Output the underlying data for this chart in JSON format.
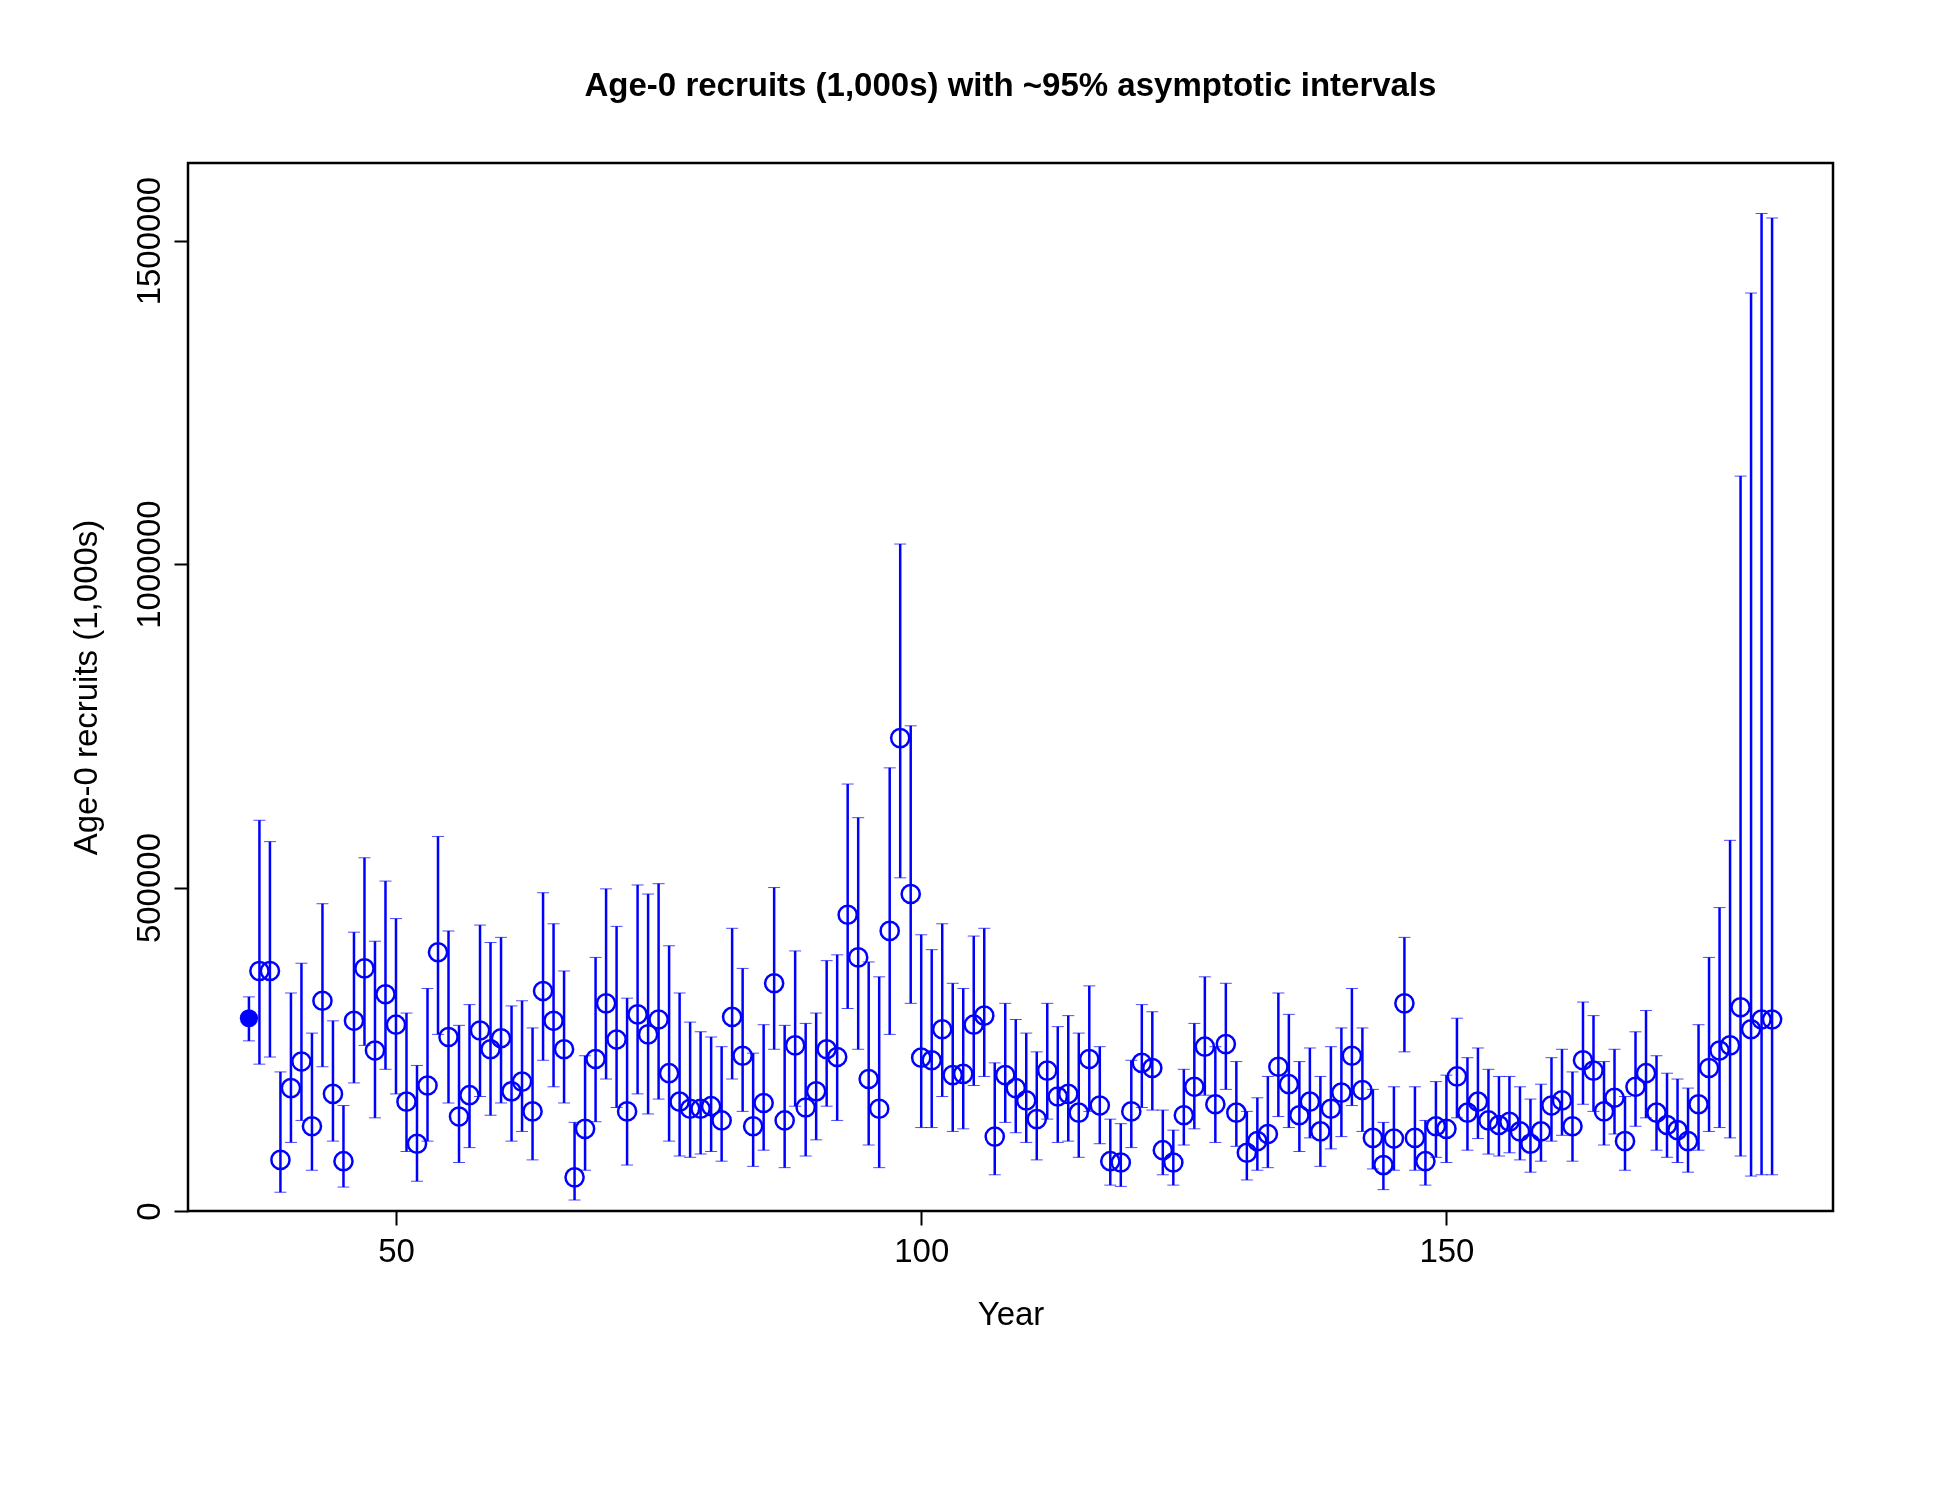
{
  "chart_data": {
    "type": "scatter",
    "title": "Age-0 recruits (1,000s) with ~95% asymptotic intervals",
    "xlabel": "Year",
    "ylabel": "Age-0 recruits (1,000s)",
    "xlim": [
      30.2,
      186.8
    ],
    "ylim": [
      0,
      1620000
    ],
    "xticks": [
      50,
      100,
      150
    ],
    "yticks": [
      0,
      500000,
      1000000,
      1500000
    ],
    "grid": false,
    "marker": "circle",
    "series": [
      {
        "color": "#0000ff",
        "x": [
          36
        ],
        "values": [
          298000
        ],
        "errors": [
          [
            263000,
            331000
          ]
        ]
      },
      {
        "color": "#0000ff",
        "x": [
          37,
          38,
          39,
          40,
          41,
          42,
          43,
          44,
          45,
          46,
          47,
          48,
          49,
          50,
          51,
          52,
          53,
          54,
          55,
          56,
          57,
          58,
          59,
          60,
          61,
          62,
          63,
          64,
          65,
          66,
          67,
          68,
          69,
          70,
          71,
          72,
          73,
          74,
          75,
          76,
          77,
          78,
          79,
          80,
          81,
          82,
          83,
          84,
          85,
          86,
          87,
          88,
          89,
          90,
          91,
          92,
          93,
          94,
          95,
          96,
          97,
          98,
          99,
          100,
          101,
          102,
          103,
          104,
          105,
          106,
          107,
          108,
          109,
          110,
          111,
          112,
          113,
          114,
          115,
          116,
          117,
          118,
          119,
          120,
          121,
          122,
          123,
          124,
          125,
          126,
          127,
          128,
          129,
          130,
          131,
          132,
          133,
          134,
          135,
          136,
          137,
          138,
          139,
          140,
          141,
          142,
          143,
          144,
          145,
          146,
          147,
          148,
          149,
          150,
          151,
          152,
          153,
          154,
          155,
          156,
          157,
          158,
          159,
          160,
          161,
          162,
          163,
          164,
          165,
          166,
          167,
          168,
          169,
          170,
          171,
          172,
          173,
          174,
          175,
          176,
          177,
          178,
          179,
          180,
          181
        ],
        "values": [
          371000,
          371000,
          79000,
          190000,
          231000,
          131000,
          325000,
          181000,
          77000,
          294000,
          375000,
          248000,
          335000,
          288000,
          169000,
          104000,
          194000,
          400000,
          269000,
          146000,
          179000,
          279000,
          250000,
          267000,
          185000,
          200000,
          154000,
          340000,
          294000,
          250000,
          52000,
          127000,
          235000,
          321000,
          265000,
          154000,
          304000,
          273000,
          296000,
          213000,
          169000,
          158000,
          158000,
          162000,
          140000,
          300000,
          240000,
          131000,
          167000,
          352000,
          140000,
          256000,
          160000,
          185000,
          250000,
          238000,
          458000,
          392000,
          204000,
          158000,
          433000,
          731000,
          490000,
          237000,
          233000,
          281000,
          210000,
          212000,
          288000,
          302000,
          115000,
          210000,
          190000,
          171000,
          142000,
          217000,
          177000,
          181000,
          152000,
          235000,
          163000,
          77000,
          75000,
          154000,
          229000,
          221000,
          94000,
          75000,
          148000,
          192000,
          254000,
          165000,
          258000,
          152000,
          90000,
          108000,
          119000,
          223000,
          196000,
          148000,
          169000,
          123000,
          158000,
          183000,
          240000,
          187000,
          113000,
          71000,
          112000,
          321000,
          113000,
          77000,
          131000,
          127000,
          208000,
          152000,
          169000,
          140000,
          133000,
          138000,
          123000,
          104000,
          123000,
          163000,
          171000,
          131000,
          233000,
          217000,
          154000,
          175000,
          108000,
          192000,
          213000,
          152000,
          133000,
          125000,
          108000,
          165000,
          221000,
          248000,
          256000,
          315000,
          281000,
          296000,
          296000
        ],
        "errors": [
          [
            227000,
            604000
          ],
          [
            238000,
            571000
          ],
          [
            29000,
            215000
          ],
          [
            106000,
            337000
          ],
          [
            140000,
            383000
          ],
          [
            63000,
            275000
          ],
          [
            223000,
            475000
          ],
          [
            108000,
            294000
          ],
          [
            37000,
            163000
          ],
          [
            198000,
            431000
          ],
          [
            256000,
            546000
          ],
          [
            144000,
            417000
          ],
          [
            219000,
            510000
          ],
          [
            181000,
            452000
          ],
          [
            92000,
            306000
          ],
          [
            46000,
            225000
          ],
          [
            108000,
            344000
          ],
          [
            273000,
            579000
          ],
          [
            167000,
            433000
          ],
          [
            75000,
            287000
          ],
          [
            98000,
            319000
          ],
          [
            177000,
            442000
          ],
          [
            148000,
            415000
          ],
          [
            167000,
            423000
          ],
          [
            108000,
            317000
          ],
          [
            123000,
            325000
          ],
          [
            79000,
            283000
          ],
          [
            233000,
            492000
          ],
          [
            192000,
            444000
          ],
          [
            167000,
            371000
          ],
          [
            17000,
            137000
          ],
          [
            63000,
            240000
          ],
          [
            138000,
            392000
          ],
          [
            204000,
            498000
          ],
          [
            160000,
            440000
          ],
          [
            71000,
            329000
          ],
          [
            181000,
            504000
          ],
          [
            150000,
            490000
          ],
          [
            173000,
            506000
          ],
          [
            108000,
            410000
          ],
          [
            85000,
            337000
          ],
          [
            83000,
            292000
          ],
          [
            88000,
            277000
          ],
          [
            92000,
            269000
          ],
          [
            77000,
            254000
          ],
          [
            204000,
            437000
          ],
          [
            154000,
            375000
          ],
          [
            69000,
            244000
          ],
          [
            94000,
            288000
          ],
          [
            250000,
            500000
          ],
          [
            67000,
            287000
          ],
          [
            162000,
            402000
          ],
          [
            85000,
            290000
          ],
          [
            110000,
            306000
          ],
          [
            162000,
            387000
          ],
          [
            140000,
            396000
          ],
          [
            313000,
            660000
          ],
          [
            250000,
            608000
          ],
          [
            102000,
            385000
          ],
          [
            67000,
            362000
          ],
          [
            273000,
            685000
          ],
          [
            515000,
            1031000
          ],
          [
            321000,
            750000
          ],
          [
            129000,
            427000
          ],
          [
            129000,
            404000
          ],
          [
            177000,
            444000
          ],
          [
            123000,
            352000
          ],
          [
            127000,
            344000
          ],
          [
            194000,
            425000
          ],
          [
            208000,
            437000
          ],
          [
            56000,
            229000
          ],
          [
            137000,
            321000
          ],
          [
            121000,
            296000
          ],
          [
            106000,
            275000
          ],
          [
            79000,
            246000
          ],
          [
            142000,
            321000
          ],
          [
            106000,
            285000
          ],
          [
            108000,
            302000
          ],
          [
            83000,
            275000
          ],
          [
            154000,
            348000
          ],
          [
            104000,
            254000
          ],
          [
            40000,
            142000
          ],
          [
            38000,
            135000
          ],
          [
            98000,
            233000
          ],
          [
            160000,
            319000
          ],
          [
            156000,
            308000
          ],
          [
            56000,
            156000
          ],
          [
            40000,
            125000
          ],
          [
            102000,
            219000
          ],
          [
            127000,
            290000
          ],
          [
            179000,
            362000
          ],
          [
            106000,
            254000
          ],
          [
            188000,
            352000
          ],
          [
            100000,
            231000
          ],
          [
            48000,
            154000
          ],
          [
            63000,
            175000
          ],
          [
            67000,
            208000
          ],
          [
            146000,
            337000
          ],
          [
            129000,
            304000
          ],
          [
            92000,
            231000
          ],
          [
            113000,
            252000
          ],
          [
            69000,
            208000
          ],
          [
            96000,
            254000
          ],
          [
            115000,
            283000
          ],
          [
            163000,
            344000
          ],
          [
            123000,
            283000
          ],
          [
            65000,
            188000
          ],
          [
            33000,
            137000
          ],
          [
            63000,
            192000
          ],
          [
            246000,
            423000
          ],
          [
            63000,
            192000
          ],
          [
            40000,
            140000
          ],
          [
            83000,
            200000
          ],
          [
            75000,
            210000
          ],
          [
            144000,
            298000
          ],
          [
            94000,
            237000
          ],
          [
            112000,
            252000
          ],
          [
            88000,
            219000
          ],
          [
            85000,
            208000
          ],
          [
            90000,
            208000
          ],
          [
            79000,
            192000
          ],
          [
            60000,
            173000
          ],
          [
            77000,
            196000
          ],
          [
            108000,
            237000
          ],
          [
            117000,
            250000
          ],
          [
            77000,
            215000
          ],
          [
            165000,
            323000
          ],
          [
            154000,
            302000
          ],
          [
            102000,
            231000
          ],
          [
            119000,
            250000
          ],
          [
            63000,
            177000
          ],
          [
            131000,
            277000
          ],
          [
            144000,
            310000
          ],
          [
            94000,
            240000
          ],
          [
            83000,
            213000
          ],
          [
            75000,
            204000
          ],
          [
            60000,
            190000
          ],
          [
            94000,
            288000
          ],
          [
            123000,
            392000
          ],
          [
            129000,
            469000
          ],
          [
            113000,
            573000
          ],
          [
            85000,
            1136000
          ],
          [
            54000,
            1419000
          ],
          [
            56000,
            1542000
          ],
          [
            56000,
            1535000
          ]
        ]
      }
    ]
  }
}
